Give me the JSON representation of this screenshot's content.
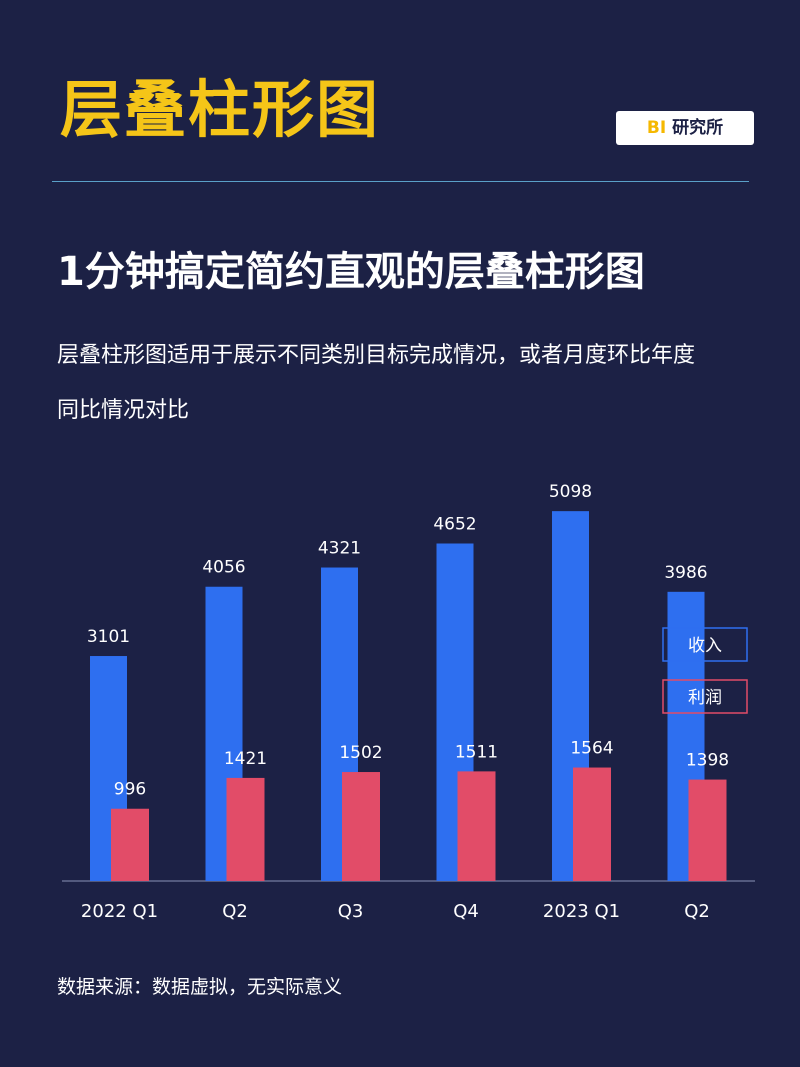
{
  "header": {
    "title": "层叠柱形图",
    "brand_bi": "BI",
    "brand_name": " 研究所"
  },
  "subtitle": "1分钟搞定简约直观的层叠柱形图",
  "description": {
    "line1": "层叠柱形图适用于展示不同类别目标完成情况，或者月度环比年度",
    "line2": "同比情况对比"
  },
  "footnote": "数据来源：数据虚拟，无实际意义",
  "colors": {
    "background": "#1c2145",
    "title": "#f5c518",
    "revenue": "#2e6ff0",
    "profit": "#e24c68",
    "axis": "#8a92b8"
  },
  "chart_data": {
    "type": "bar",
    "layout": "overlapping",
    "categories": [
      "2022 Q1",
      "Q2",
      "Q3",
      "Q4",
      "2023 Q1",
      "Q2"
    ],
    "series": [
      {
        "name": "收入",
        "values": [
          3101,
          4056,
          4321,
          4652,
          5098,
          3986
        ],
        "color": "#2e6ff0"
      },
      {
        "name": "利润",
        "values": [
          996,
          1421,
          1502,
          1511,
          1564,
          1398
        ],
        "color": "#e24c68"
      }
    ],
    "ylim": [
      0,
      5100
    ],
    "grid": false,
    "legend_position": "right"
  }
}
